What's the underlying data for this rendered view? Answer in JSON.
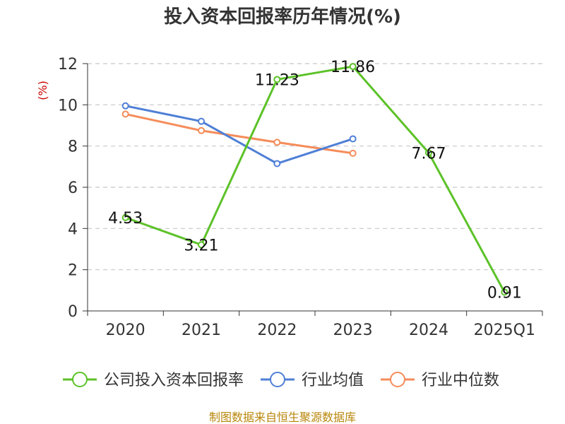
{
  "chart_data": {
    "type": "line",
    "title": "投入资本回报率历年情况(%)",
    "ylabel": "(%)",
    "ylim": [
      0,
      12
    ],
    "yticks": [
      0,
      2,
      4,
      6,
      8,
      10,
      12
    ],
    "grid": true,
    "legend_position": "bottom",
    "categories": [
      "2020",
      "2021",
      "2022",
      "2023",
      "2024",
      "2025Q1"
    ],
    "series": [
      {
        "name": "公司投入资本回报率",
        "color": "#5cc228",
        "values": [
          4.53,
          3.21,
          11.23,
          11.86,
          7.67,
          0.91
        ],
        "labels": true
      },
      {
        "name": "行业均值",
        "color": "#4f7fd6",
        "values": [
          9.95,
          9.2,
          7.15,
          8.35,
          null,
          null
        ],
        "labels": false
      },
      {
        "name": "行业中位数",
        "color": "#f58c5a",
        "values": [
          9.55,
          8.75,
          8.18,
          7.65,
          null,
          null
        ],
        "labels": false
      }
    ],
    "source": "制图数据来自恒生聚源数据库"
  }
}
